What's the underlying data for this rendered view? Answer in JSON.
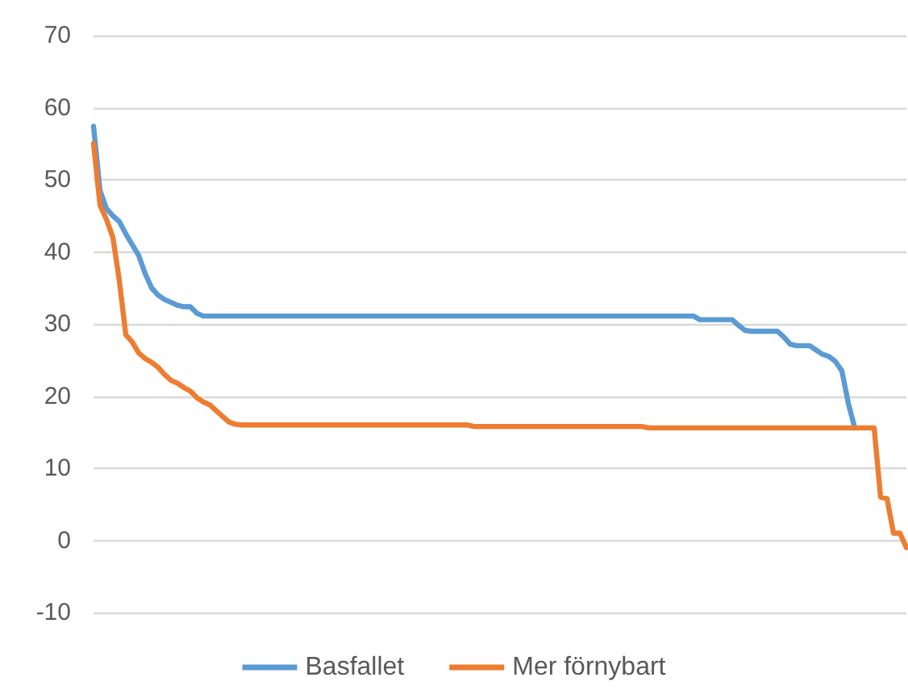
{
  "chart_data": {
    "type": "line",
    "categories": [
      null,
      null,
      null,
      null,
      null,
      null,
      null,
      null,
      null,
      null,
      null,
      null,
      null,
      null,
      null,
      null,
      null,
      null,
      null,
      null,
      null,
      null,
      null,
      null,
      null,
      null,
      null,
      null,
      null,
      null,
      null,
      null,
      null,
      null,
      null,
      null,
      null,
      null,
      null,
      null,
      null,
      null,
      null,
      null,
      null,
      null,
      null,
      null,
      null,
      null,
      null,
      null,
      null,
      null,
      null,
      null,
      null,
      null,
      null,
      null,
      null,
      null,
      null,
      null,
      null,
      null,
      null,
      null,
      null,
      null,
      null,
      null,
      null,
      null,
      null,
      null,
      null,
      null,
      null,
      null,
      null,
      null,
      null,
      null,
      null,
      null,
      null,
      null,
      null,
      null,
      null,
      null,
      null,
      null,
      null,
      null,
      null,
      null,
      null,
      null,
      null,
      null,
      null,
      null,
      null,
      null,
      null,
      null,
      null,
      null,
      null,
      null,
      null,
      null,
      null,
      null,
      null,
      null,
      null,
      null,
      null,
      null,
      null,
      null,
      null,
      null,
      null
    ],
    "series": [
      {
        "name": "Basfallet",
        "color": "#5b9bd5",
        "values": [
          57.4,
          48.5,
          46,
          45,
          44.2,
          42.5,
          41,
          39.5,
          37,
          35,
          34,
          33.4,
          33,
          32.6,
          32.4,
          32.4,
          31.5,
          31.1,
          31.1,
          31.1,
          31.1,
          31.1,
          31.1,
          31.1,
          31.1,
          31.1,
          31.1,
          31.1,
          31.1,
          31.1,
          31.1,
          31.1,
          31.1,
          31.1,
          31.1,
          31.1,
          31.1,
          31.1,
          31.1,
          31.1,
          31.1,
          31.1,
          31.1,
          31.1,
          31.1,
          31.1,
          31.1,
          31.1,
          31.1,
          31.1,
          31.1,
          31.1,
          31.1,
          31.1,
          31.1,
          31.1,
          31.1,
          31.1,
          31.1,
          31.1,
          31.1,
          31.1,
          31.1,
          31.1,
          31.1,
          31.1,
          31.1,
          31.1,
          31.1,
          31.1,
          31.1,
          31.1,
          31.1,
          31.1,
          31.1,
          31.1,
          31.1,
          31.1,
          31.1,
          31.1,
          31.1,
          31.1,
          31.1,
          31.1,
          31.1,
          31.1,
          31.1,
          31.1,
          31.1,
          31.1,
          31.1,
          31.1,
          31.1,
          31.1,
          30.6,
          30.6,
          30.6,
          30.6,
          30.6,
          30.6,
          29.8,
          29.1,
          29,
          29,
          29,
          29,
          29,
          28.2,
          27.2,
          27,
          27,
          27,
          26.4,
          25.8,
          25.5,
          24.8,
          23.5,
          19,
          15.6,
          null,
          null,
          null,
          null,
          null,
          null,
          null,
          null
        ]
      },
      {
        "name": "Mer förnybart",
        "color": "#ed7d31",
        "values": [
          55,
          46.5,
          44.5,
          42,
          36,
          28.5,
          27.5,
          26,
          25.2,
          24.7,
          24,
          23,
          22.2,
          21.8,
          21.2,
          20.7,
          19.8,
          19.2,
          18.8,
          18,
          17.2,
          16.4,
          16.1,
          16,
          16,
          16,
          16,
          16,
          16,
          16,
          16,
          16,
          16,
          16,
          16,
          16,
          16,
          16,
          16,
          16,
          16,
          16,
          16,
          16,
          16,
          16,
          16,
          16,
          16,
          16,
          16,
          16,
          16,
          16,
          16,
          16,
          16,
          16,
          16,
          15.8,
          15.8,
          15.8,
          15.8,
          15.8,
          15.8,
          15.8,
          15.8,
          15.8,
          15.8,
          15.8,
          15.8,
          15.8,
          15.8,
          15.8,
          15.8,
          15.8,
          15.8,
          15.8,
          15.8,
          15.8,
          15.8,
          15.8,
          15.8,
          15.8,
          15.8,
          15.8,
          15.6,
          15.6,
          15.6,
          15.6,
          15.6,
          15.6,
          15.6,
          15.6,
          15.6,
          15.6,
          15.6,
          15.6,
          15.6,
          15.6,
          15.6,
          15.6,
          15.6,
          15.6,
          15.6,
          15.6,
          15.6,
          15.6,
          15.6,
          15.6,
          15.6,
          15.6,
          15.6,
          15.6,
          15.6,
          15.6,
          15.6,
          15.6,
          15.6,
          15.6,
          15.6,
          15.6,
          6,
          5.8,
          1,
          1,
          -1
        ]
      }
    ],
    "ylim": [
      -10,
      70
    ],
    "yticks": [
      -10,
      0,
      10,
      20,
      30,
      40,
      50,
      60,
      70
    ],
    "grid": "y",
    "legend": "bottom",
    "line_style": "solid",
    "tick_labels": "y"
  }
}
